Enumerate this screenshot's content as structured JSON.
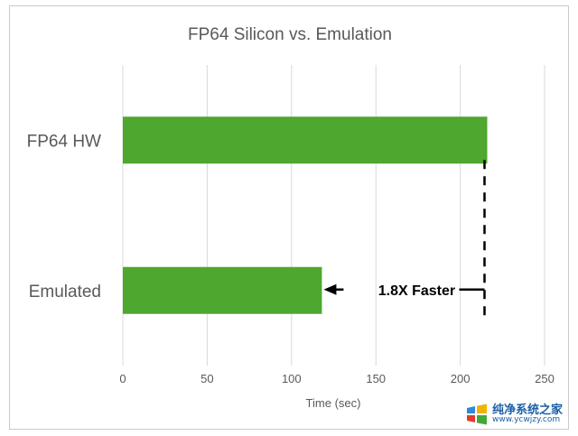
{
  "chart_data": {
    "type": "bar",
    "orientation": "horizontal",
    "title": "FP64 Silicon vs. Emulation",
    "xlabel": "Time (sec)",
    "ylabel": "",
    "categories": [
      "FP64 HW",
      "Emulated"
    ],
    "values": [
      216,
      118
    ],
    "xlim": [
      0,
      250
    ],
    "xticks": [
      0,
      50,
      100,
      150,
      200,
      250
    ],
    "tick_labels": [
      "0",
      "50",
      "100",
      "150",
      "200",
      "250"
    ],
    "grid": true,
    "legend": "none",
    "bar_color": "#4ea72e",
    "annotation": {
      "text": "1.8X Faster",
      "from_value": 216,
      "to_value": 118
    }
  },
  "watermark": {
    "text": "纯净系统之家",
    "url": "www.ycwjzy.com",
    "icon": "windows-logo-icon"
  },
  "colors": {
    "grid": "#d9d9d9",
    "text": "#595959",
    "annotation": "#000000"
  }
}
